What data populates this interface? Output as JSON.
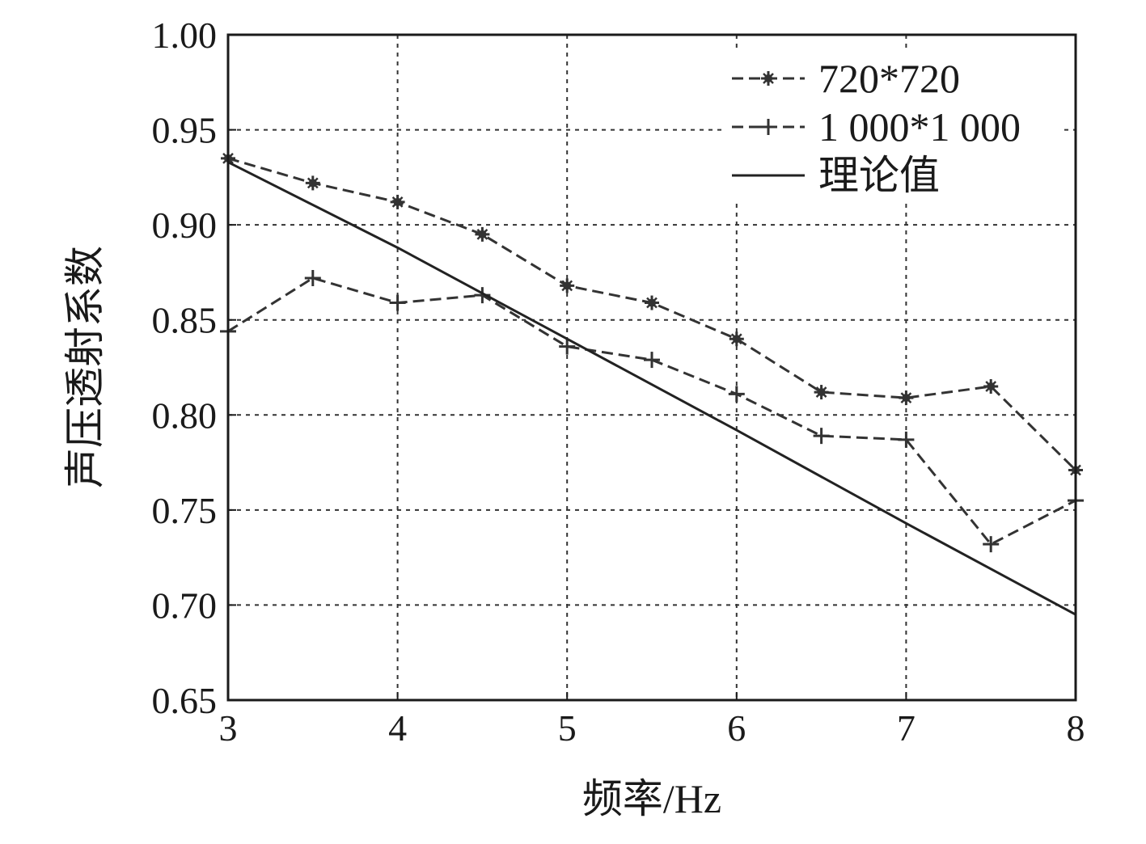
{
  "chart_data": {
    "type": "line",
    "title": "",
    "xlabel": "频率/Hz",
    "ylabel": "声压透射系数",
    "xlim": [
      3,
      8
    ],
    "ylim": [
      0.65,
      1.0
    ],
    "x_ticks": [
      3,
      4,
      5,
      6,
      7,
      8
    ],
    "x_tick_labels": [
      "3",
      "4",
      "5",
      "6",
      "7",
      "8"
    ],
    "y_ticks": [
      0.65,
      0.7,
      0.75,
      0.8,
      0.85,
      0.9,
      0.95,
      1.0
    ],
    "y_tick_labels": [
      "0.65",
      "0.70",
      "0.75",
      "0.80",
      "0.85",
      "0.90",
      "0.95",
      "1.00"
    ],
    "grid": true,
    "legend_position": "top-right",
    "series": [
      {
        "name": "720*720",
        "style": "dashed",
        "marker": "star",
        "color": "#333333",
        "x": [
          3,
          3.5,
          4,
          4.5,
          5,
          5.5,
          6,
          6.5,
          7,
          7.5,
          8
        ],
        "values": [
          0.935,
          0.922,
          0.912,
          0.895,
          0.868,
          0.859,
          0.84,
          0.812,
          0.809,
          0.815,
          0.771
        ]
      },
      {
        "name": "1 000*1 000",
        "style": "dashed",
        "marker": "plus",
        "color": "#333333",
        "x": [
          3,
          3.5,
          4,
          4.5,
          5,
          5.5,
          6,
          6.5,
          7,
          7.5,
          8
        ],
        "values": [
          0.844,
          0.872,
          0.859,
          0.863,
          0.836,
          0.829,
          0.811,
          0.789,
          0.787,
          0.732,
          0.755
        ]
      },
      {
        "name": "理论值",
        "style": "solid",
        "marker": "none",
        "color": "#222222",
        "x": [
          3,
          4,
          5,
          6,
          7,
          8
        ],
        "values": [
          0.933,
          0.888,
          0.84,
          0.792,
          0.743,
          0.695
        ]
      }
    ]
  }
}
